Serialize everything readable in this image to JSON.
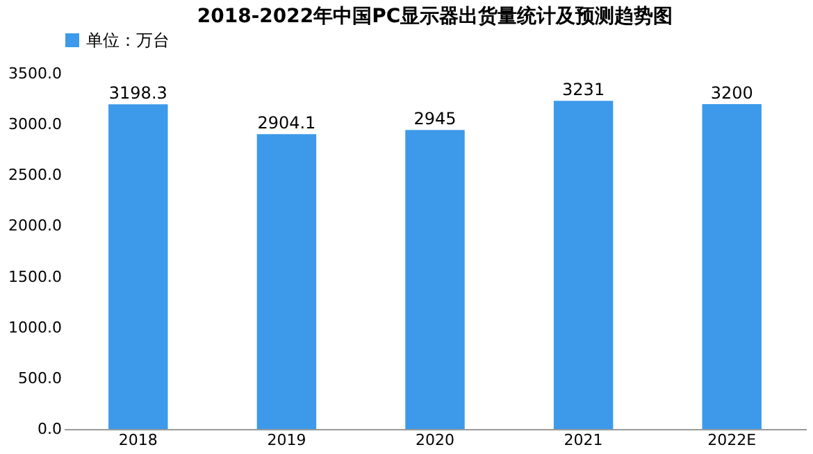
{
  "chart_data": {
    "type": "bar",
    "title": "2018-2022年中国PC显示器出货量统计及预测趋势图",
    "categories": [
      "2018",
      "2019",
      "2020",
      "2021",
      "2022E"
    ],
    "series": [
      {
        "name": "单位：万台",
        "color": "#3d9aea",
        "values": [
          3198.3,
          2904.1,
          2945,
          3231,
          3200
        ]
      }
    ],
    "ylim": [
      0,
      3500
    ],
    "yticks": [
      {
        "value": 0,
        "label": "0.0"
      },
      {
        "value": 500,
        "label": "500.0"
      },
      {
        "value": 1000,
        "label": "1000.0"
      },
      {
        "value": 1500,
        "label": "1500.0"
      },
      {
        "value": 2000,
        "label": "2000.0"
      },
      {
        "value": 2500,
        "label": "2500.0"
      },
      {
        "value": 3000,
        "label": "3000.0"
      },
      {
        "value": 3500,
        "label": "3500.0"
      }
    ],
    "data_labels": true,
    "legend": "top",
    "grid": false
  }
}
